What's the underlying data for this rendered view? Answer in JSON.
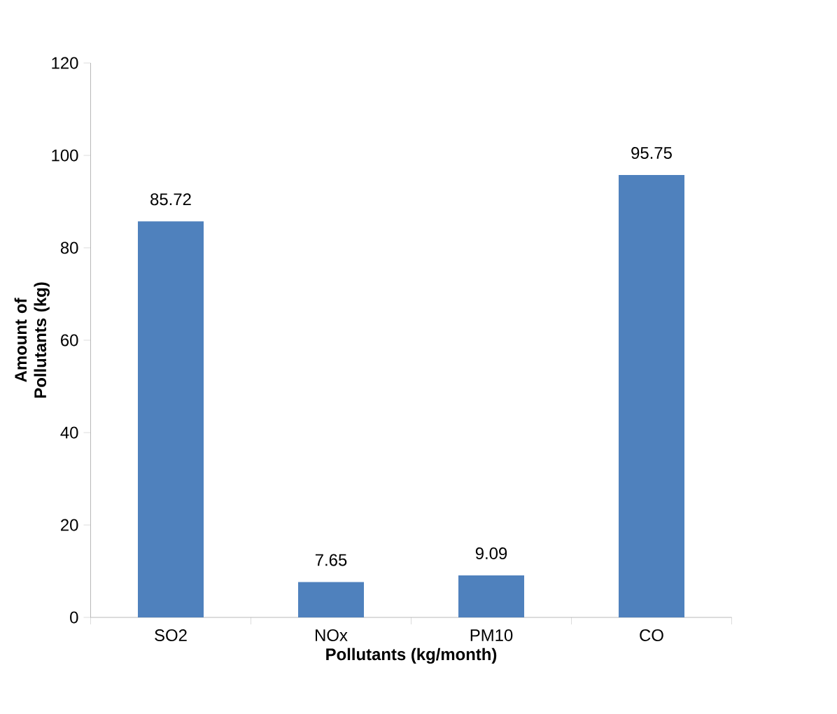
{
  "chart_data": {
    "type": "bar",
    "categories": [
      "SO2",
      "NOx",
      "PM10",
      "CO"
    ],
    "values": [
      85.72,
      7.65,
      9.09,
      95.75
    ],
    "color": "#4f81bd",
    "xlabel": "Pollutants (kg/month)",
    "ylabel": "Amount of Pollutants (kg)",
    "ylim": [
      0,
      120
    ],
    "yticks": [
      0,
      20,
      40,
      60,
      80,
      100,
      120
    ],
    "data_labels": true,
    "grid": false
  }
}
